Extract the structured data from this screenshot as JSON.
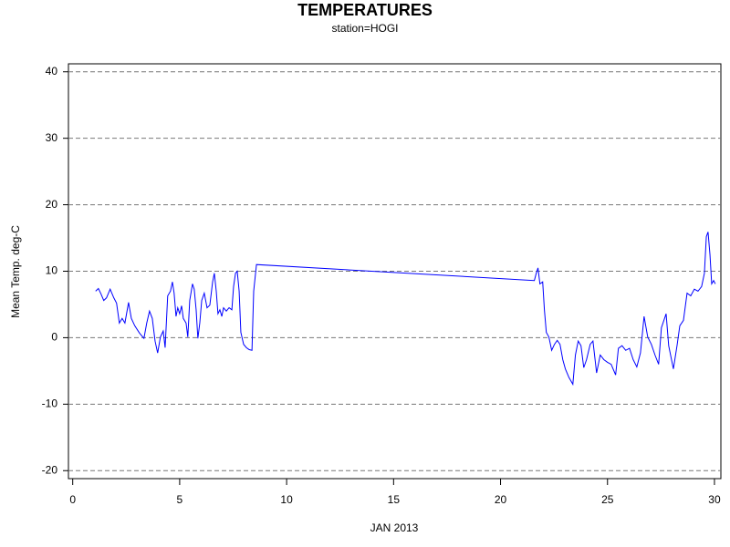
{
  "chart_data": {
    "type": "line",
    "title": "TEMPERATURES",
    "subtitle": "station=HOGI",
    "x_label": "JAN 2013",
    "y_label": "Mean Temp. deg-C",
    "xlim": [
      -0.2,
      30.3
    ],
    "xticks": [
      0,
      5,
      10,
      15,
      20,
      25,
      30
    ],
    "ylim": [
      -21.2,
      41.2
    ],
    "yticks": [
      -20,
      -10,
      0,
      10,
      20,
      30,
      40
    ],
    "grid": true,
    "x": [
      1.07,
      1.2,
      1.32,
      1.45,
      1.58,
      1.75,
      1.92,
      2.05,
      2.18,
      2.31,
      2.44,
      2.61,
      2.74,
      2.9,
      3.12,
      3.33,
      3.46,
      3.59,
      3.72,
      3.85,
      3.97,
      4.1,
      4.23,
      4.32,
      4.44,
      4.57,
      4.66,
      4.74,
      4.83,
      4.91,
      5.0,
      5.09,
      5.17,
      5.3,
      5.38,
      5.47,
      5.6,
      5.68,
      5.77,
      5.85,
      5.94,
      6.03,
      6.15,
      6.28,
      6.41,
      6.54,
      6.62,
      6.71,
      6.79,
      6.88,
      6.97,
      7.05,
      7.18,
      7.31,
      7.44,
      7.52,
      7.61,
      7.69,
      7.78,
      7.86,
      7.99,
      8.12,
      8.25,
      8.38,
      8.46,
      8.59,
      21.58,
      21.67,
      21.75,
      21.84,
      21.97,
      22.05,
      22.14,
      22.26,
      22.39,
      22.52,
      22.65,
      22.78,
      22.91,
      23.03,
      23.2,
      23.38,
      23.5,
      23.63,
      23.76,
      23.89,
      24.02,
      24.19,
      24.32,
      24.49,
      24.66,
      24.83,
      25.0,
      25.17,
      25.38,
      25.51,
      25.68,
      25.85,
      26.03,
      26.2,
      26.37,
      26.54,
      26.71,
      26.88,
      27.05,
      27.22,
      27.39,
      27.52,
      27.74,
      27.86,
      28.08,
      28.25,
      28.38,
      28.55,
      28.72,
      28.89,
      29.06,
      29.23,
      29.4,
      29.53,
      29.62,
      29.7,
      29.79,
      29.87,
      29.96,
      30.04
    ],
    "series": [
      {
        "name": "Mean Temp.",
        "color": "#0000ff",
        "values": [
          7.0,
          7.4,
          6.6,
          5.6,
          6.0,
          7.3,
          6.0,
          5.2,
          2.2,
          2.9,
          2.2,
          5.3,
          2.9,
          1.8,
          0.7,
          -0.1,
          2.2,
          4.0,
          2.9,
          -0.5,
          -2.3,
          0.1,
          1.0,
          -1.5,
          6.3,
          7.0,
          8.4,
          6.7,
          3.2,
          4.5,
          3.6,
          4.8,
          2.9,
          2.2,
          0.1,
          5.6,
          8.1,
          7.3,
          4.2,
          -0.1,
          2.2,
          5.6,
          6.7,
          4.5,
          4.9,
          8.4,
          9.7,
          7.0,
          3.6,
          4.2,
          3.2,
          4.5,
          4.0,
          4.5,
          4.2,
          7.7,
          9.7,
          10.0,
          7.0,
          0.8,
          -1.0,
          -1.5,
          -1.8,
          -1.9,
          7.0,
          11.0,
          8.6,
          9.7,
          10.5,
          8.1,
          8.4,
          4.2,
          0.8,
          0.1,
          -1.9,
          -1.0,
          -0.4,
          -1.0,
          -3.3,
          -4.7,
          -6.0,
          -7.0,
          -2.6,
          -0.5,
          -1.2,
          -4.5,
          -3.3,
          -1.0,
          -0.5,
          -5.3,
          -2.6,
          -3.3,
          -3.7,
          -4.0,
          -5.6,
          -1.6,
          -1.2,
          -1.9,
          -1.6,
          -3.3,
          -4.4,
          -2.3,
          3.2,
          0.1,
          -1.0,
          -2.6,
          -4.0,
          1.5,
          3.6,
          -1.2,
          -4.7,
          -1.2,
          1.8,
          2.6,
          6.7,
          6.3,
          7.3,
          7.0,
          7.7,
          9.7,
          15.2,
          15.9,
          12.5,
          8.1,
          8.6,
          8.1
        ]
      }
    ]
  }
}
